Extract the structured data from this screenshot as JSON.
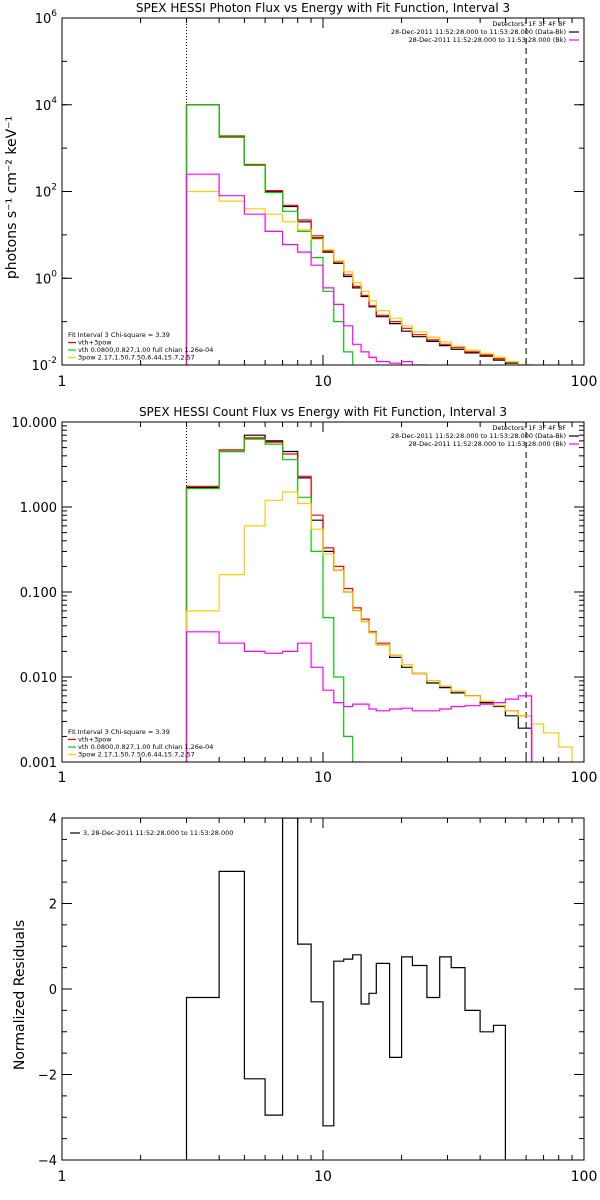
{
  "chart_data": [
    {
      "type": "line",
      "title": "SPEX HESSI Photon Flux vs Energy with Fit Function, Interval 3",
      "ylabel": "photons s⁻¹ cm⁻² keV⁻¹",
      "xlabel": "",
      "xscale": "log",
      "yscale": "log",
      "xlim": [
        1,
        100
      ],
      "ylim": [
        0.01,
        1000000
      ],
      "xticks": [
        {
          "v": 1,
          "label": "1"
        },
        {
          "v": 10,
          "label": "10"
        },
        {
          "v": 100,
          "label": "100"
        }
      ],
      "yticks": [
        {
          "v": 0.01,
          "label": "10",
          "sup": "-2"
        },
        {
          "v": 1,
          "label": "10",
          "sup": "0"
        },
        {
          "v": 100,
          "label": "10",
          "sup": "2"
        },
        {
          "v": 10000,
          "label": "10",
          "sup": "4"
        },
        {
          "v": 1000000,
          "label": "10",
          "sup": "6"
        }
      ],
      "vlines": [
        {
          "x": 3,
          "style": "dotted"
        },
        {
          "x": 60,
          "style": "dashed"
        }
      ],
      "legend_topright": [
        {
          "text": "Detectors: 1F 3F 4F 8F",
          "color": ""
        },
        {
          "text": "28-Dec-2011 11:52:28.000 to 11:53:28.000 (Data-Bk)",
          "color": "#000000"
        },
        {
          "text": "28-Dec-2011 11:52:28.000 to 11:53:28.000 (Bk)",
          "color": "#ff00ff"
        }
      ],
      "legend_bottomleft": [
        {
          "text": "Fit Interval 3   Chi-square = 3.39",
          "color": ""
        },
        {
          "text": "vth+3pow",
          "color": "#ff0000"
        },
        {
          "text": "vth 0.0800,0.827,1.00  full chian 1.26e-04",
          "color": "#00cc00"
        },
        {
          "text": "3pow 2.17,1.50,7.50,6.44,15.7,2.57",
          "color": "#ffcc00"
        }
      ],
      "edges": [
        3,
        4,
        5,
        6,
        7,
        8,
        9,
        10,
        11,
        12,
        13,
        14,
        15,
        16,
        18,
        20,
        22,
        25,
        28,
        31,
        35,
        40,
        45,
        50,
        56,
        63,
        70,
        80,
        90
      ],
      "series": [
        {
          "color": "#000000",
          "values": [
            10000,
            1800,
            400,
            100,
            45,
            20,
            8.5,
            4,
            2.2,
            1.1,
            0.6,
            0.38,
            0.22,
            0.13,
            0.09,
            0.06,
            0.045,
            0.035,
            0.028,
            0.023,
            0.019,
            0.016,
            0.013,
            0.011,
            0.0095,
            null,
            null,
            null
          ]
        },
        {
          "color": "#ff0000",
          "values": [
            10000,
            1900,
            420,
            105,
            48,
            22,
            9.5,
            4.3,
            2.4,
            1.2,
            0.65,
            0.4,
            0.23,
            0.14,
            0.1,
            0.07,
            0.05,
            0.038,
            0.03,
            0.025,
            0.02,
            0.017,
            0.014,
            0.012,
            0.01,
            null,
            null,
            null
          ]
        },
        {
          "color": "#00cc00",
          "values": [
            10000,
            1800,
            400,
            95,
            35,
            12,
            3,
            0.5,
            0.1,
            0.02,
            0.007,
            null,
            null,
            null,
            null,
            null,
            null,
            null,
            null,
            null,
            null,
            null,
            null,
            null,
            null,
            null,
            null,
            null
          ]
        },
        {
          "color": "#ffcc00",
          "values": [
            100,
            60,
            40,
            30,
            20,
            13,
            8,
            4.5,
            2.5,
            1.4,
            0.8,
            0.5,
            0.3,
            0.18,
            0.12,
            0.08,
            0.058,
            0.044,
            0.034,
            0.027,
            0.022,
            0.018,
            0.015,
            0.012,
            0.01,
            0.008,
            0.0065,
            0.005
          ]
        },
        {
          "color": "#ff00ff",
          "values": [
            250,
            80,
            30,
            12,
            6,
            4,
            2,
            0.6,
            0.25,
            0.08,
            0.03,
            0.02,
            0.015,
            0.012,
            0.011,
            0.012,
            0.01,
            0.009,
            0.0085,
            0.0085,
            0.009,
            0.008,
            0.0085,
            0.009,
            0.0075,
            null,
            null,
            null
          ]
        }
      ]
    },
    {
      "type": "line",
      "title": "SPEX HESSI Count Flux vs Energy with Fit Function, Interval 3",
      "ylabel": "",
      "xlabel": "",
      "xscale": "log",
      "yscale": "log",
      "xlim": [
        1,
        100
      ],
      "ylim": [
        0.001,
        10
      ],
      "xticks": [
        {
          "v": 1,
          "label": "1"
        },
        {
          "v": 10,
          "label": "10"
        },
        {
          "v": 100,
          "label": "100"
        }
      ],
      "yticks": [
        {
          "v": 0.001,
          "label": "0.001",
          "sup": ""
        },
        {
          "v": 0.01,
          "label": "0.010",
          "sup": ""
        },
        {
          "v": 0.1,
          "label": "0.100",
          "sup": ""
        },
        {
          "v": 1,
          "label": "1.000",
          "sup": ""
        },
        {
          "v": 10,
          "label": "10.000",
          "sup": ""
        }
      ],
      "vlines": [
        {
          "x": 3,
          "style": "dotted"
        },
        {
          "x": 60,
          "style": "dashed"
        }
      ],
      "legend_topright": [
        {
          "text": "Detectors: 1F 3F 4F 8F",
          "color": ""
        },
        {
          "text": "28-Dec-2011 11:52:28.000 to 11:53:28.000 (Data-Bk)",
          "color": "#000000"
        },
        {
          "text": "28-Dec-2011 11:52:28.000 to 11:53:28.000 (Bk)",
          "color": "#ff00ff"
        }
      ],
      "legend_bottomleft": [
        {
          "text": "Fit Interval 3   Chi-square = 3.39",
          "color": ""
        },
        {
          "text": "vth+3pow",
          "color": "#ff0000"
        },
        {
          "text": "vth 0.0800,0.827,1.00  full chian 1.26e-04",
          "color": "#00cc00"
        },
        {
          "text": "3pow 2.17,1.50,7.50,6.44,15.7,2.57",
          "color": "#ffcc00"
        }
      ],
      "edges": [
        3,
        4,
        5,
        6,
        7,
        8,
        9,
        10,
        11,
        12,
        13,
        14,
        15,
        16,
        18,
        20,
        22,
        25,
        28,
        31,
        35,
        40,
        45,
        50,
        56,
        63,
        70,
        80,
        90
      ],
      "series": [
        {
          "color": "#000000",
          "values": [
            1.7,
            4.5,
            7.0,
            6.0,
            4.5,
            2.2,
            0.7,
            0.3,
            0.18,
            0.1,
            0.06,
            0.045,
            0.033,
            0.024,
            0.017,
            0.013,
            0.011,
            0.0085,
            0.0075,
            0.0065,
            0.006,
            0.005,
            0.0045,
            0.0035,
            0.0025,
            null,
            null,
            null
          ]
        },
        {
          "color": "#ff0000",
          "values": [
            1.75,
            4.7,
            6.5,
            5.8,
            4.2,
            2.3,
            0.8,
            0.33,
            0.2,
            0.11,
            0.065,
            0.048,
            0.034,
            0.025,
            0.018,
            0.014,
            0.011,
            0.009,
            0.0078,
            0.0068,
            0.006,
            0.0052,
            0.0046,
            0.004,
            0.0035,
            null,
            null,
            null
          ]
        },
        {
          "color": "#00cc00",
          "values": [
            1.65,
            4.5,
            6.3,
            5.5,
            3.6,
            1.3,
            0.3,
            0.05,
            0.01,
            0.002,
            0.001,
            null,
            null,
            null,
            null,
            null,
            null,
            null,
            null,
            null,
            null,
            null,
            null,
            null,
            null,
            null,
            null,
            null
          ]
        },
        {
          "color": "#ffcc00",
          "values": [
            0.06,
            0.16,
            0.6,
            1.2,
            1.5,
            1.1,
            0.55,
            0.28,
            0.18,
            0.1,
            0.06,
            0.045,
            0.033,
            0.024,
            0.018,
            0.014,
            0.011,
            0.009,
            0.0078,
            0.0068,
            0.006,
            0.0052,
            0.0046,
            0.004,
            0.0035,
            0.0028,
            0.0022,
            0.0015
          ]
        },
        {
          "color": "#ff00ff",
          "values": [
            0.034,
            0.025,
            0.02,
            0.019,
            0.02,
            0.025,
            0.013,
            0.007,
            0.005,
            0.0045,
            0.0048,
            0.0048,
            0.0042,
            0.004,
            0.0042,
            0.0043,
            0.004,
            0.004,
            0.0042,
            0.0045,
            0.0046,
            0.0048,
            0.005,
            0.0055,
            0.006,
            null,
            null,
            null
          ]
        }
      ]
    },
    {
      "type": "line",
      "title": "",
      "ylabel": "Normalized Residuals",
      "xlabel": "",
      "xscale": "log",
      "yscale": "linear",
      "xlim": [
        1,
        100
      ],
      "ylim": [
        -4,
        4
      ],
      "xticks": [
        {
          "v": 1,
          "label": "1"
        },
        {
          "v": 10,
          "label": "10"
        },
        {
          "v": 100,
          "label": "100"
        }
      ],
      "yticks": [
        {
          "v": -4,
          "label": "−4",
          "sup": ""
        },
        {
          "v": -2,
          "label": "−2",
          "sup": ""
        },
        {
          "v": 0,
          "label": "0",
          "sup": ""
        },
        {
          "v": 2,
          "label": "2",
          "sup": ""
        },
        {
          "v": 4,
          "label": "4",
          "sup": ""
        }
      ],
      "legend_topleft": [
        {
          "text": "3, 28-Dec-2011 11:52:28.000 to 11:53:28.000",
          "color": "#000000"
        }
      ],
      "edges": [
        3,
        4,
        5,
        6,
        7,
        8,
        9,
        10,
        11,
        12,
        13,
        14,
        15,
        16,
        18,
        20,
        22,
        25,
        28,
        31,
        35,
        40,
        45,
        50,
        56,
        63
      ],
      "series": [
        {
          "color": "#000000",
          "values": [
            -0.2,
            2.75,
            -2.1,
            -2.95,
            4.0,
            1.05,
            -0.3,
            -3.2,
            0.65,
            0.7,
            0.8,
            -0.35,
            -0.1,
            0.6,
            -1.6,
            0.75,
            0.55,
            -0.2,
            0.75,
            0.5,
            -0.5,
            -1.0,
            -0.85,
            null,
            null
          ]
        }
      ]
    }
  ]
}
